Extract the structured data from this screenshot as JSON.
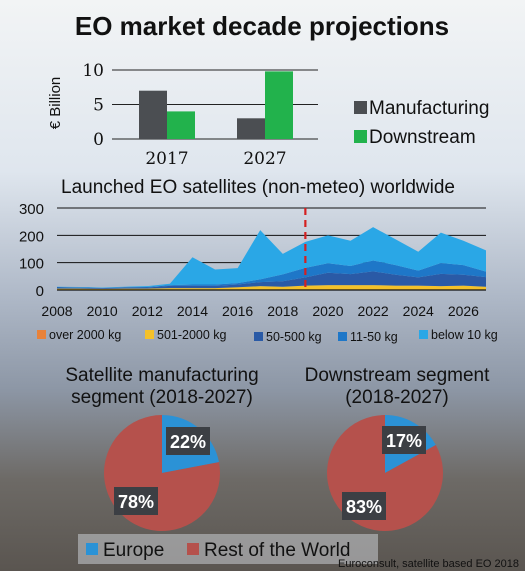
{
  "title": "EO market decade projections",
  "credit": "Euroconsult, satellite based EO 2018",
  "colors": {
    "manufacturing": "#4b4e52",
    "downstream": "#22b24c",
    "over2000": "#e8823a",
    "s501_2000": "#f4c12a",
    "s50_500": "#2a5aa6",
    "s11_50": "#1e77c8",
    "below10": "#2aa7e6",
    "europe": "#2b92d6",
    "rest": "#b5514c",
    "marker": "#d42020"
  },
  "chart_data": [
    {
      "type": "bar",
      "categories": [
        "2017",
        "2027"
      ],
      "series": [
        {
          "name": "Manufacturing",
          "values": [
            7,
            3
          ]
        },
        {
          "name": "Downstream",
          "values": [
            4,
            9.8
          ]
        }
      ],
      "ylabel": "€ Billion",
      "yticks": [
        0,
        5,
        10
      ],
      "ylim": [
        0,
        10
      ],
      "legend": "right"
    },
    {
      "type": "area",
      "title": "Launched EO satellites (non-meteo) worldwide",
      "x": [
        2008,
        2009,
        2010,
        2011,
        2012,
        2013,
        2014,
        2015,
        2016,
        2017,
        2018,
        2019,
        2020,
        2021,
        2022,
        2023,
        2024,
        2025,
        2026,
        2027
      ],
      "series": [
        {
          "name": "over 2000 kg",
          "values": [
            2,
            2,
            2,
            2,
            2,
            2,
            2,
            2,
            2,
            2,
            2,
            2,
            2,
            2,
            2,
            2,
            2,
            2,
            2,
            2
          ]
        },
        {
          "name": "501-2000 kg",
          "values": [
            3,
            3,
            2,
            3,
            3,
            5,
            5,
            5,
            8,
            12,
            10,
            14,
            16,
            16,
            16,
            14,
            14,
            12,
            14,
            10
          ]
        },
        {
          "name": "50-500 kg",
          "values": [
            4,
            3,
            3,
            4,
            4,
            8,
            8,
            8,
            10,
            15,
            20,
            30,
            45,
            40,
            50,
            40,
            30,
            45,
            40,
            35
          ]
        },
        {
          "name": "11-50 kg",
          "values": [
            2,
            2,
            1,
            1,
            2,
            3,
            5,
            5,
            5,
            10,
            25,
            35,
            35,
            30,
            40,
            35,
            25,
            40,
            35,
            20
          ]
        },
        {
          "name": "below 10 kg",
          "values": [
            1,
            1,
            1,
            2,
            3,
            5,
            100,
            55,
            55,
            180,
            75,
            95,
            102,
            92,
            122,
            94,
            69,
            111,
            89,
            78
          ]
        }
      ],
      "stacked": true,
      "xticks": [
        2008,
        2010,
        2012,
        2014,
        2016,
        2018,
        2020,
        2022,
        2024,
        2026
      ],
      "yticks": [
        0,
        100,
        200,
        300
      ],
      "ylim": [
        0,
        300
      ],
      "marker_x": 2019,
      "legend": "bottom"
    },
    {
      "type": "pie",
      "title": "Satellite manufacturing segment (2018-2027)",
      "labels": [
        "Europe",
        "Rest of the World"
      ],
      "values": [
        22,
        78
      ],
      "value_labels": [
        "22%",
        "78%"
      ]
    },
    {
      "type": "pie",
      "title": "Downstream segment (2018-2027)",
      "labels": [
        "Europe",
        "Rest of the World"
      ],
      "values": [
        17,
        83
      ],
      "value_labels": [
        "17%",
        "83%"
      ]
    }
  ],
  "pie_legend": [
    "Europe",
    "Rest of the World"
  ]
}
